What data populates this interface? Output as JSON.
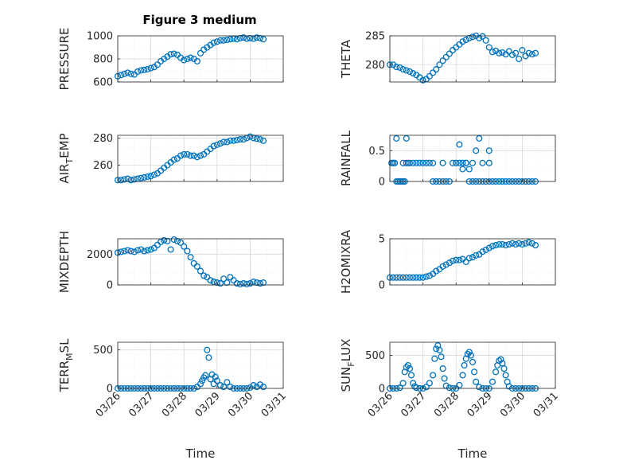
{
  "figure_title": "Figure 3 medium",
  "x_axis": {
    "label": "Time",
    "ticks": [
      "03/26",
      "03/27",
      "03/28",
      "03/29",
      "03/30",
      "03/31"
    ],
    "range": [
      0,
      5
    ]
  },
  "colors": {
    "marker": "#0072BD",
    "grid": "#d9d9d9",
    "axis": "#262626"
  },
  "chart_data": [
    {
      "type": "scatter",
      "ylabel": "PRESSURE",
      "ylim": [
        600,
        1000
      ],
      "yticks": [
        "600",
        "800",
        "1000"
      ],
      "ytick_values": [
        600,
        800,
        1000
      ],
      "grid": true,
      "x": [
        0,
        0.1,
        0.2,
        0.3,
        0.4,
        0.5,
        0.6,
        0.7,
        0.8,
        0.9,
        1,
        1.1,
        1.2,
        1.3,
        1.4,
        1.5,
        1.6,
        1.7,
        1.8,
        1.9,
        2,
        2.1,
        2.2,
        2.3,
        2.4,
        2.5,
        2.6,
        2.7,
        2.8,
        2.9,
        3,
        3.1,
        3.2,
        3.3,
        3.4,
        3.5,
        3.6,
        3.7,
        3.8,
        3.9,
        4,
        4.1,
        4.2,
        4.3,
        4.4
      ],
      "y": [
        650,
        660,
        670,
        680,
        670,
        665,
        690,
        700,
        705,
        710,
        720,
        730,
        750,
        780,
        800,
        820,
        840,
        845,
        835,
        810,
        790,
        800,
        810,
        800,
        780,
        850,
        880,
        900,
        920,
        940,
        950,
        960,
        960,
        965,
        970,
        975,
        970,
        980,
        985,
        975,
        980,
        975,
        985,
        980,
        970
      ]
    },
    {
      "type": "scatter",
      "ylabel": "THETA",
      "ylim": [
        277,
        285
      ],
      "yticks": [
        "280",
        "285"
      ],
      "ytick_values": [
        280,
        285
      ],
      "grid": true,
      "x": [
        0,
        0.1,
        0.2,
        0.3,
        0.4,
        0.5,
        0.6,
        0.7,
        0.8,
        0.9,
        1,
        1.1,
        1.2,
        1.3,
        1.4,
        1.5,
        1.6,
        1.7,
        1.8,
        1.9,
        2,
        2.1,
        2.2,
        2.3,
        2.4,
        2.5,
        2.6,
        2.7,
        2.8,
        2.9,
        3,
        3.1,
        3.2,
        3.3,
        3.4,
        3.5,
        3.6,
        3.7,
        3.8,
        3.9,
        4,
        4.1,
        4.2,
        4.3,
        4.4
      ],
      "y": [
        280,
        280,
        279.6,
        279.5,
        279.2,
        279,
        278.8,
        278.5,
        278.2,
        277.8,
        277.3,
        277.5,
        278,
        278.6,
        279.2,
        280,
        280.7,
        281.3,
        281.9,
        282.5,
        283,
        283.5,
        284,
        284.3,
        284.6,
        284.8,
        285,
        284.6,
        284.9,
        284.2,
        283,
        282.2,
        282.4,
        282,
        282.1,
        281.8,
        282.3,
        281.7,
        282,
        281,
        282.5,
        281.5,
        282,
        281.8,
        282
      ]
    },
    {
      "type": "scatter",
      "ylabel": "AIR_TEMP",
      "ylim": [
        248,
        282
      ],
      "yticks": [
        "260",
        "280"
      ],
      "ytick_values": [
        260,
        280
      ],
      "grid": true,
      "x": [
        0,
        0.1,
        0.2,
        0.3,
        0.4,
        0.5,
        0.6,
        0.7,
        0.8,
        0.9,
        1,
        1.1,
        1.2,
        1.3,
        1.4,
        1.5,
        1.6,
        1.7,
        1.8,
        1.9,
        2,
        2.1,
        2.2,
        2.3,
        2.4,
        2.5,
        2.6,
        2.7,
        2.8,
        2.9,
        3,
        3.1,
        3.2,
        3.3,
        3.4,
        3.5,
        3.6,
        3.7,
        3.8,
        3.9,
        4,
        4.1,
        4.2,
        4.3,
        4.4
      ],
      "y": [
        249,
        249,
        249.5,
        250,
        249,
        249.5,
        250,
        250.5,
        251,
        251.5,
        252,
        253,
        254,
        256,
        258,
        260,
        262,
        264,
        265,
        267,
        268,
        268,
        267,
        267,
        266,
        267,
        268,
        270,
        272,
        274,
        275,
        276,
        277,
        277,
        278,
        278,
        278.5,
        279,
        279,
        280,
        281,
        280,
        279.5,
        279,
        278
      ]
    },
    {
      "type": "scatter",
      "ylabel": "RAINFALL",
      "ylim": [
        0,
        0.75
      ],
      "yticks": [
        "0",
        "0.5"
      ],
      "ytick_values": [
        0,
        0.5
      ],
      "grid": true,
      "x": [
        0.05,
        0.1,
        0.15,
        0.2,
        0.25,
        0.3,
        0.35,
        0.4,
        0.45,
        0.5,
        0.55,
        0.6,
        0.7,
        0.8,
        0.9,
        1,
        1.1,
        1.2,
        1.3,
        1.4,
        1.5,
        1.6,
        1.7,
        1.8,
        1.9,
        2,
        2.1,
        2.2,
        2.3,
        2.4,
        2.5,
        2.6,
        2.7,
        2.8,
        2.9,
        3,
        3.1,
        3.2,
        3.3,
        3.4,
        3.5,
        3.6,
        3.7,
        3.8,
        3.9,
        4,
        4.1,
        4.2,
        4.3,
        4.4,
        0.2,
        0.5,
        2.1,
        2.7,
        0.1,
        0.4,
        1.3,
        1.6,
        2.0,
        2.3,
        2.5,
        2.8,
        3.0,
        2.2,
        2.4,
        2.6,
        3.0
      ],
      "y": [
        0.3,
        0.3,
        0.3,
        0,
        0,
        0,
        0,
        0,
        0,
        0.3,
        0.3,
        0.3,
        0.3,
        0.3,
        0.3,
        0.3,
        0.3,
        0.3,
        0,
        0,
        0,
        0,
        0,
        0,
        0.3,
        0.3,
        0.3,
        0.3,
        0.3,
        0,
        0,
        0,
        0,
        0,
        0,
        0,
        0,
        0,
        0,
        0,
        0,
        0,
        0,
        0,
        0,
        0,
        0,
        0,
        0,
        0,
        0.7,
        0.7,
        0.6,
        0.7,
        0.3,
        0.3,
        0.3,
        0.3,
        0.3,
        0.3,
        0.3,
        0.3,
        0.3,
        0.2,
        0.2,
        0.5,
        0.5
      ]
    },
    {
      "type": "scatter",
      "ylabel": "MIXDEPTH",
      "ylim": [
        0,
        3000
      ],
      "yticks": [
        "0",
        "2000"
      ],
      "ytick_values": [
        0,
        2000
      ],
      "grid": true,
      "x": [
        0,
        0.1,
        0.2,
        0.3,
        0.4,
        0.5,
        0.6,
        0.7,
        0.8,
        0.9,
        1,
        1.1,
        1.2,
        1.3,
        1.4,
        1.5,
        1.6,
        1.7,
        1.8,
        1.9,
        2,
        2.1,
        2.2,
        2.3,
        2.4,
        2.5,
        2.6,
        2.7,
        2.8,
        2.9,
        3,
        3.1,
        3.2,
        3.3,
        3.4,
        3.5,
        3.6,
        3.7,
        3.8,
        3.9,
        4,
        4.1,
        4.2,
        4.3,
        4.4
      ],
      "y": [
        2100,
        2150,
        2200,
        2250,
        2200,
        2150,
        2250,
        2300,
        2200,
        2250,
        2300,
        2400,
        2600,
        2800,
        2900,
        2850,
        2300,
        2950,
        2850,
        2750,
        2500,
        2200,
        1800,
        1400,
        1200,
        900,
        600,
        500,
        300,
        200,
        150,
        100,
        400,
        150,
        500,
        300,
        100,
        50,
        100,
        50,
        100,
        200,
        150,
        100,
        150
      ]
    },
    {
      "type": "scatter",
      "ylabel": "H2OMIXRA",
      "ylim": [
        0,
        5
      ],
      "yticks": [
        "0",
        "5"
      ],
      "ytick_values": [
        0,
        5
      ],
      "grid": true,
      "x": [
        0,
        0.1,
        0.2,
        0.3,
        0.4,
        0.5,
        0.6,
        0.7,
        0.8,
        0.9,
        1,
        1.1,
        1.2,
        1.3,
        1.4,
        1.5,
        1.6,
        1.7,
        1.8,
        1.9,
        2,
        2.1,
        2.2,
        2.3,
        2.4,
        2.5,
        2.6,
        2.7,
        2.8,
        2.9,
        3,
        3.1,
        3.2,
        3.3,
        3.4,
        3.5,
        3.6,
        3.7,
        3.8,
        3.9,
        4,
        4.1,
        4.2,
        4.3,
        4.4
      ],
      "y": [
        0.8,
        0.8,
        0.8,
        0.8,
        0.8,
        0.8,
        0.8,
        0.8,
        0.8,
        0.8,
        0.8,
        0.9,
        1.0,
        1.2,
        1.5,
        1.7,
        2.0,
        2.2,
        2.4,
        2.6,
        2.7,
        2.7,
        2.8,
        2.5,
        2.9,
        3.0,
        3.2,
        3.3,
        3.6,
        3.8,
        4.0,
        4.2,
        4.3,
        4.4,
        4.4,
        4.3,
        4.4,
        4.5,
        4.4,
        4.5,
        4.4,
        4.5,
        4.6,
        4.5,
        4.3
      ]
    },
    {
      "type": "scatter",
      "ylabel": "TERR_MSL",
      "ylim": [
        0,
        600
      ],
      "yticks": [
        "0",
        "500"
      ],
      "ytick_values": [
        0,
        500
      ],
      "grid": true,
      "x": [
        0,
        0.1,
        0.2,
        0.3,
        0.4,
        0.5,
        0.6,
        0.7,
        0.8,
        0.9,
        1,
        1.1,
        1.2,
        1.3,
        1.4,
        1.5,
        1.6,
        1.7,
        1.8,
        1.9,
        2,
        2.1,
        2.2,
        2.3,
        2.4,
        2.5,
        2.55,
        2.6,
        2.65,
        2.7,
        2.75,
        2.8,
        2.85,
        2.9,
        2.95,
        3,
        3.1,
        3.2,
        3.3,
        3.4,
        3.5,
        3.6,
        3.7,
        3.8,
        3.9,
        4,
        4.1,
        4.2,
        4.3,
        4.4
      ],
      "y": [
        0,
        0,
        0,
        0,
        0,
        0,
        0,
        0,
        0,
        0,
        0,
        0,
        0,
        0,
        0,
        0,
        0,
        0,
        0,
        0,
        0,
        0,
        0,
        0,
        20,
        60,
        100,
        140,
        170,
        500,
        400,
        120,
        180,
        60,
        150,
        100,
        40,
        20,
        80,
        20,
        0,
        0,
        0,
        0,
        0,
        10,
        40,
        20,
        50,
        20
      ]
    },
    {
      "type": "scatter",
      "ylabel": "SUN_FLUX",
      "ylim": [
        0,
        700
      ],
      "yticks": [
        "0",
        "500"
      ],
      "ytick_values": [
        0,
        500
      ],
      "grid": true,
      "x": [
        0,
        0.1,
        0.2,
        0.3,
        0.4,
        0.45,
        0.5,
        0.55,
        0.6,
        0.65,
        0.7,
        0.75,
        0.8,
        0.9,
        1,
        1.1,
        1.2,
        1.3,
        1.35,
        1.4,
        1.45,
        1.5,
        1.55,
        1.6,
        1.65,
        1.7,
        1.8,
        1.9,
        2,
        2.1,
        2.2,
        2.25,
        2.3,
        2.35,
        2.4,
        2.45,
        2.5,
        2.55,
        2.6,
        2.7,
        2.8,
        2.9,
        3,
        3.1,
        3.2,
        3.25,
        3.3,
        3.35,
        3.4,
        3.45,
        3.5,
        3.55,
        3.6,
        3.7,
        3.8,
        3.9,
        4,
        4.1,
        4.2,
        4.3,
        4.4
      ],
      "y": [
        0,
        0,
        0,
        10,
        80,
        250,
        320,
        350,
        300,
        200,
        80,
        30,
        10,
        0,
        0,
        20,
        80,
        200,
        450,
        600,
        650,
        580,
        480,
        300,
        150,
        40,
        10,
        0,
        0,
        50,
        200,
        350,
        450,
        520,
        550,
        500,
        400,
        250,
        100,
        20,
        0,
        0,
        0,
        100,
        250,
        350,
        420,
        440,
        380,
        300,
        200,
        100,
        30,
        0,
        0,
        0,
        0,
        0,
        0,
        0,
        0
      ]
    }
  ]
}
